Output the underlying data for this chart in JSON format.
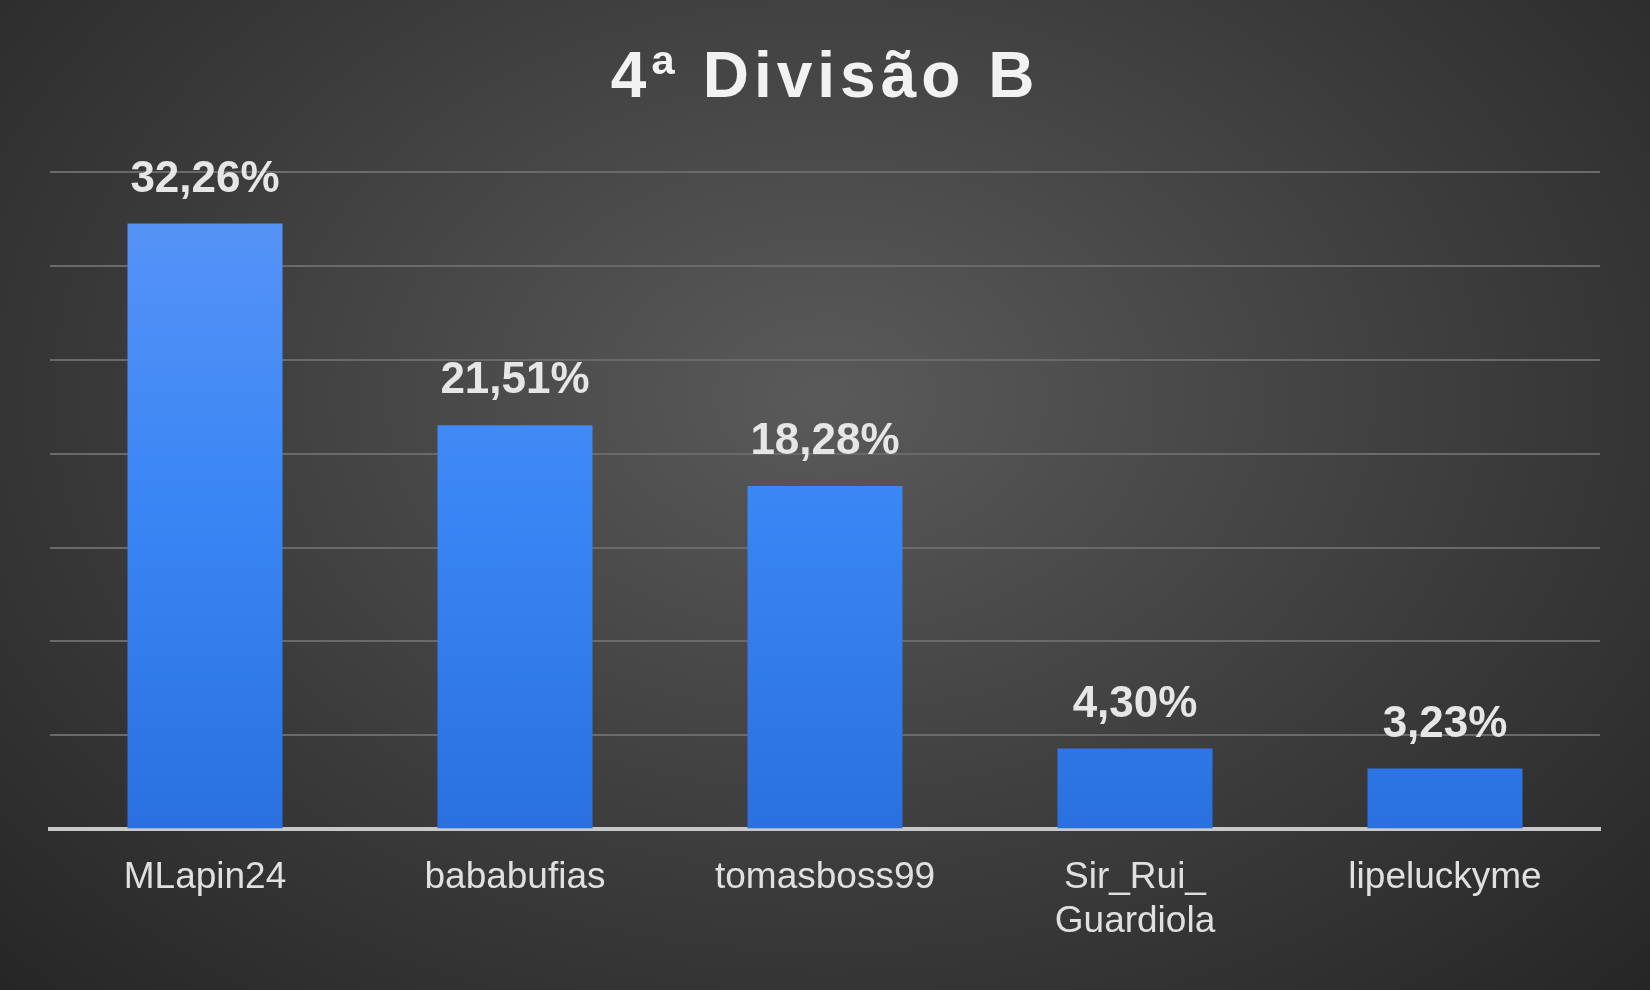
{
  "chart_data": {
    "type": "bar",
    "title": "4ª Divisão B",
    "categories": [
      "MLapin24",
      "bababufias",
      "tomasboss99",
      "Sir_Rui_\nGuardiola",
      "lipeluckyme"
    ],
    "values": [
      32.26,
      21.51,
      18.28,
      4.3,
      3.23
    ],
    "value_labels": [
      "32,26%",
      "21,51%",
      "18,28%",
      "4,30%",
      "3,23%"
    ],
    "color": "#3a86f5",
    "ylim": [
      0,
      35
    ],
    "yticks": [
      {
        "value": 0,
        "label": null
      },
      {
        "value": 5,
        "label": null
      },
      {
        "value": 10,
        "label": null
      },
      {
        "value": 15,
        "label": null
      },
      {
        "value": 20,
        "label": null
      },
      {
        "value": 25,
        "label": null
      },
      {
        "value": 30,
        "label": null
      },
      {
        "value": 35,
        "label": null
      }
    ],
    "grid": "y",
    "tick_labels": "x",
    "legend": false
  }
}
